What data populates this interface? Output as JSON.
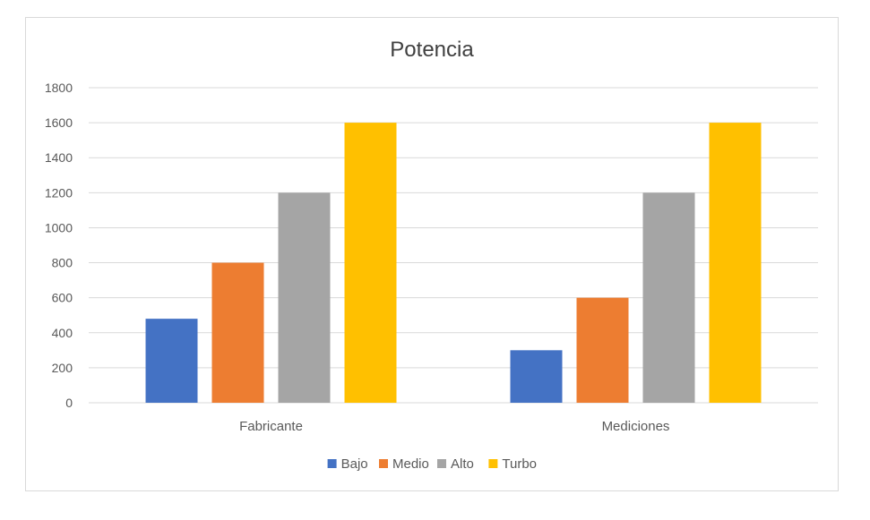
{
  "chart_data": {
    "type": "bar",
    "title": "Potencia",
    "xlabel": "",
    "ylabel": "",
    "categories": [
      "Fabricante",
      "Mediciones"
    ],
    "series": [
      {
        "name": "Bajo",
        "values": [
          480,
          300
        ],
        "color": "#4472c4"
      },
      {
        "name": "Medio",
        "values": [
          800,
          600
        ],
        "color": "#ed7d31"
      },
      {
        "name": "Alto",
        "values": [
          1200,
          1200
        ],
        "color": "#a5a5a5"
      },
      {
        "name": "Turbo",
        "values": [
          1600,
          1600
        ],
        "color": "#ffc000"
      }
    ],
    "ylim": [
      0,
      1800
    ],
    "yticks": [
      0,
      200,
      400,
      600,
      800,
      1000,
      1200,
      1400,
      1600,
      1800
    ],
    "grid": true,
    "legend_position": "bottom",
    "colors": {
      "gridline": "#d9d9d9",
      "axis_text": "#595959",
      "title_text": "#404040"
    }
  }
}
